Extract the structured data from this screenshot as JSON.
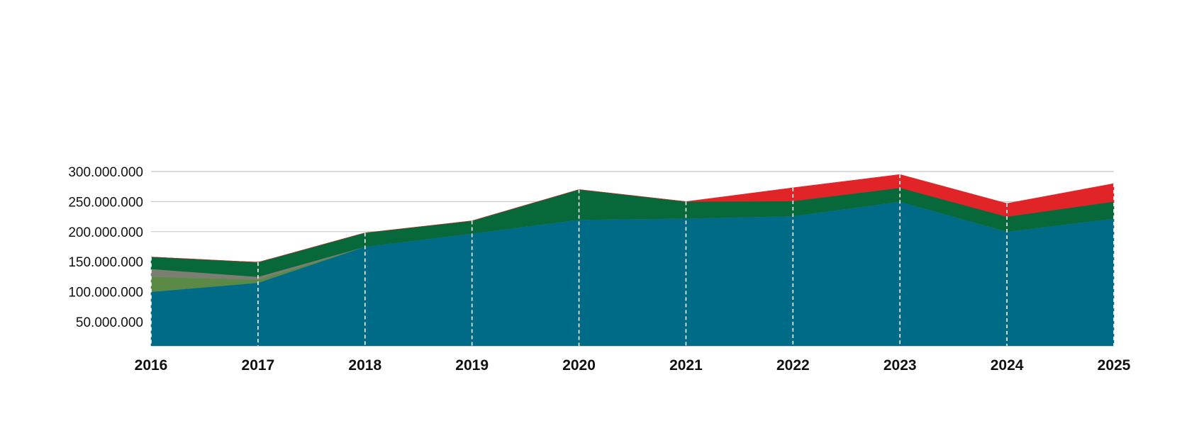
{
  "chart_data": {
    "type": "area",
    "stacked": true,
    "x": [
      "2016",
      "2017",
      "2018",
      "2019",
      "2020",
      "2021",
      "2022",
      "2023",
      "2024",
      "2025"
    ],
    "ylim": [
      10000000,
      300000000
    ],
    "yticks": [
      50000000,
      100000000,
      150000000,
      200000000,
      250000000,
      300000000
    ],
    "ytick_labels": [
      "50.000.000",
      "100.000.000",
      "150.000.000",
      "200.000.000",
      "250.000.000",
      "300.000.000"
    ],
    "grid": "horizontal",
    "vertical_guides": "dashed-white",
    "legend": "none",
    "series": [
      {
        "color": "#006b86",
        "values": [
          100000000,
          115000000,
          175000000,
          197000000,
          220000000,
          222000000,
          226000000,
          250000000,
          200000000,
          222000000
        ]
      },
      {
        "color": "#5b8a46",
        "values": [
          25000000,
          5000000,
          0,
          0,
          0,
          0,
          0,
          0,
          0,
          0
        ]
      },
      {
        "color": "#7a7f72",
        "values": [
          13000000,
          5000000,
          0,
          0,
          0,
          0,
          0,
          0,
          0,
          0
        ]
      },
      {
        "color": "#07693a",
        "values": [
          20000000,
          24000000,
          23000000,
          21000000,
          50000000,
          28000000,
          25000000,
          23000000,
          25000000,
          28000000
        ]
      },
      {
        "color": "#e02427",
        "values": [
          0,
          0,
          0,
          0,
          0,
          0,
          22000000,
          22000000,
          22000000,
          30000000
        ]
      }
    ]
  }
}
